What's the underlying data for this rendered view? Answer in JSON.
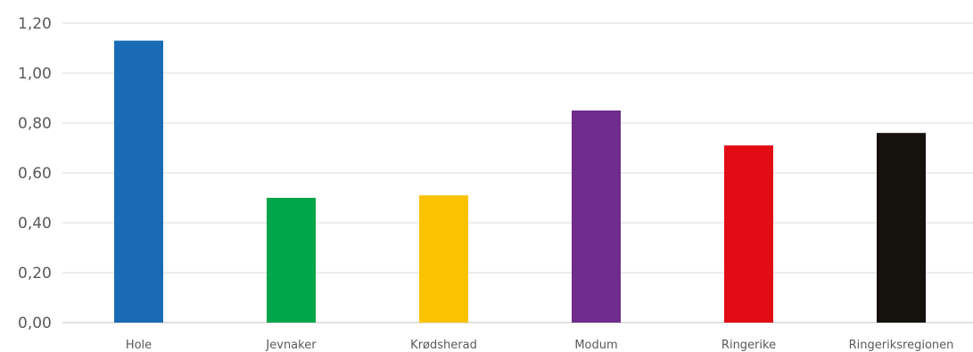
{
  "chart_data": {
    "type": "bar",
    "categories": [
      "Hole",
      "Jevnaker",
      "Krødsherad",
      "Modum",
      "Ringerike",
      "Ringeriksregionen"
    ],
    "values": [
      1.13,
      0.5,
      0.51,
      0.85,
      0.71,
      0.76
    ],
    "colors": [
      "#1a6bb5",
      "#00a64a",
      "#fbc200",
      "#6f2c8c",
      "#e20c15",
      "#15120e"
    ],
    "y_ticks": [
      "0,00",
      "0,20",
      "0,40",
      "0,60",
      "0,80",
      "1,00",
      "1,20"
    ],
    "ylim": [
      0,
      1.2
    ],
    "grid": true,
    "legend": "none",
    "title": "",
    "xlabel": "",
    "ylabel": ""
  }
}
